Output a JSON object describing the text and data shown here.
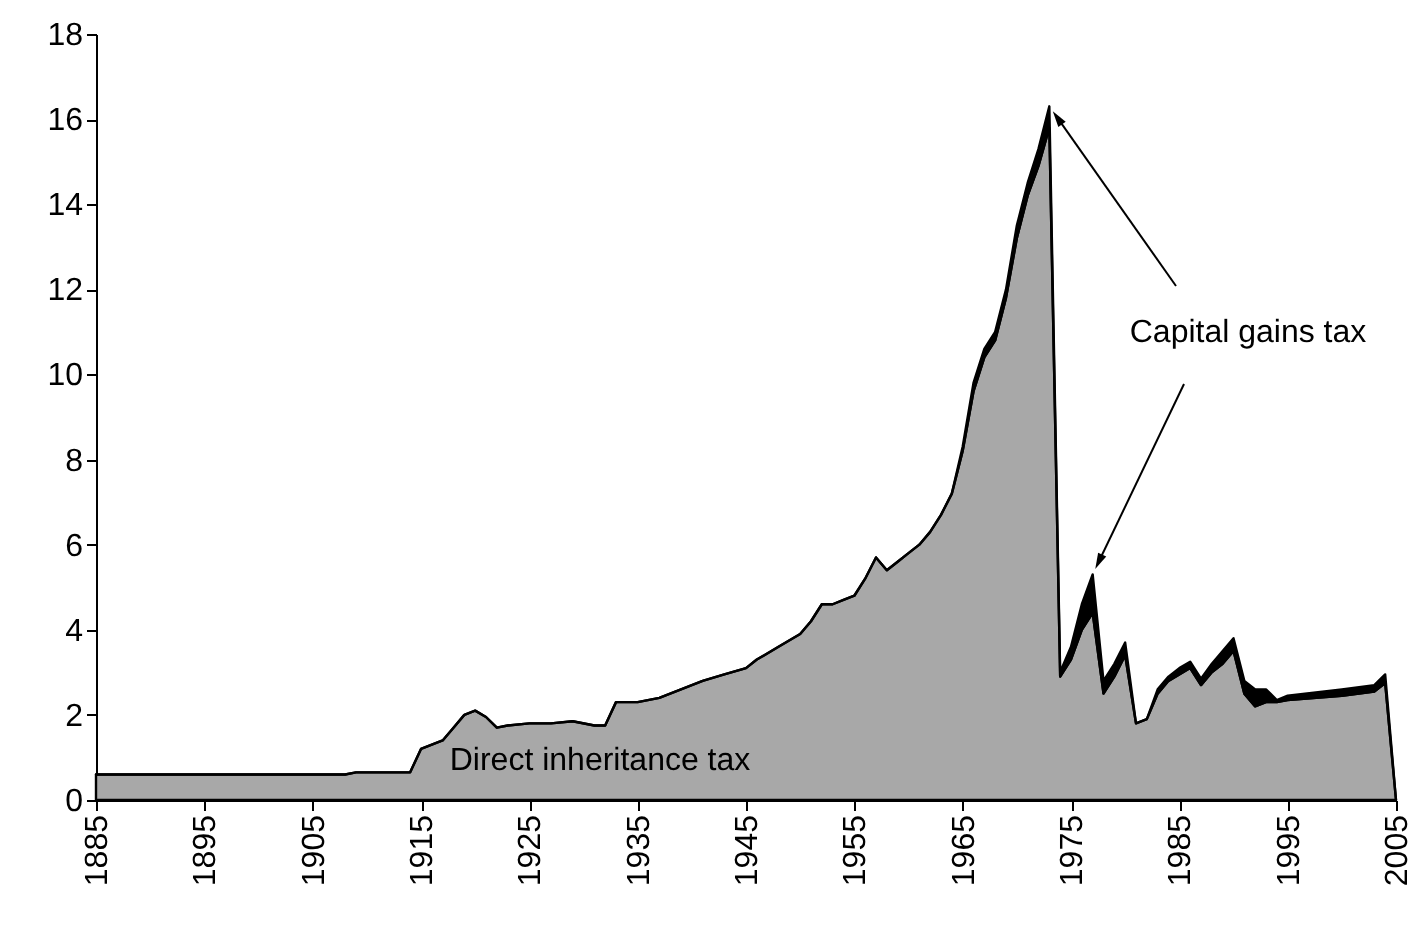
{
  "chart_data": {
    "type": "area",
    "stacked": true,
    "x": [
      1885,
      1908,
      1909,
      1914,
      1915,
      1916,
      1917,
      1918,
      1919,
      1920,
      1921,
      1922,
      1923,
      1925,
      1927,
      1929,
      1931,
      1932,
      1933,
      1935,
      1937,
      1939,
      1941,
      1943,
      1945,
      1946,
      1948,
      1950,
      1951,
      1952,
      1953,
      1954,
      1955,
      1956,
      1957,
      1958,
      1959,
      1960,
      1961,
      1962,
      1963,
      1964,
      1965,
      1966,
      1967,
      1968,
      1969,
      1970,
      1971,
      1972,
      1973,
      1974,
      1975,
      1976,
      1977,
      1978,
      1979,
      1980,
      1981,
      1982,
      1983,
      1984,
      1985,
      1986,
      1987,
      1988,
      1989,
      1990,
      1991,
      1992,
      1993,
      1994,
      1995,
      2000,
      2003,
      2004,
      2005
    ],
    "series": [
      {
        "name": "Direct inheritance tax",
        "color": "#a8a8a8",
        "values": [
          0.6,
          0.6,
          0.65,
          0.65,
          1.2,
          1.3,
          1.4,
          1.7,
          2.0,
          2.1,
          1.95,
          1.7,
          1.75,
          1.8,
          1.8,
          1.85,
          1.75,
          1.75,
          2.3,
          2.3,
          2.4,
          2.6,
          2.8,
          2.95,
          3.1,
          3.3,
          3.6,
          3.9,
          4.2,
          4.6,
          4.6,
          4.7,
          4.8,
          5.2,
          5.7,
          5.4,
          5.6,
          5.8,
          6.0,
          6.3,
          6.7,
          7.2,
          8.2,
          9.6,
          10.4,
          10.8,
          11.8,
          13.2,
          14.2,
          14.9,
          15.8,
          2.9,
          3.3,
          4.0,
          4.4,
          2.5,
          2.9,
          3.4,
          1.8,
          1.9,
          2.5,
          2.8,
          2.95,
          3.1,
          2.7,
          3.0,
          3.2,
          3.5,
          2.5,
          2.2,
          2.3,
          2.3,
          2.35,
          2.45,
          2.55,
          2.75,
          0
        ]
      },
      {
        "name": "Capital gains tax",
        "color": "#000000",
        "values": [
          0,
          0,
          0,
          0,
          0,
          0,
          0,
          0,
          0,
          0,
          0,
          0,
          0,
          0,
          0,
          0,
          0,
          0,
          0,
          0,
          0,
          0,
          0,
          0,
          0,
          0,
          0,
          0,
          0,
          0,
          0,
          0,
          0,
          0,
          0,
          0,
          0,
          0,
          0,
          0,
          0,
          0,
          0.1,
          0.2,
          0.2,
          0.2,
          0.2,
          0.3,
          0.3,
          0.4,
          0.5,
          0.1,
          0.3,
          0.6,
          0.9,
          0.3,
          0.3,
          0.3,
          0,
          0,
          0.1,
          0.1,
          0.15,
          0.15,
          0.15,
          0.2,
          0.3,
          0.3,
          0.3,
          0.4,
          0.3,
          0.05,
          0.1,
          0.15,
          0.15,
          0.2,
          0
        ]
      }
    ],
    "xlim": [
      1885,
      2005
    ],
    "xticks": [
      1885,
      1895,
      1905,
      1915,
      1925,
      1935,
      1945,
      1955,
      1965,
      1975,
      1985,
      1995,
      2005
    ],
    "ylim": [
      0,
      18
    ],
    "yticks": [
      0,
      2,
      4,
      6,
      8,
      10,
      12,
      14,
      16,
      18
    ],
    "grid": false
  }
}
